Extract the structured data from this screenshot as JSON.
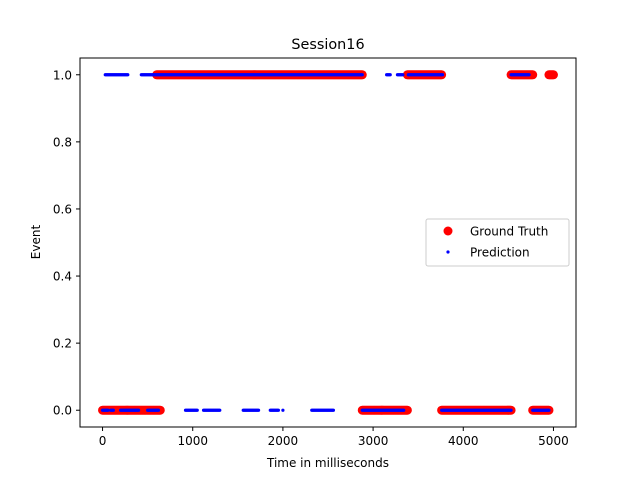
{
  "chart_data": {
    "type": "scatter",
    "title": "Session16",
    "xlabel": "Time in  milliseconds",
    "ylabel": "Event",
    "xlim": [
      -250,
      5250
    ],
    "ylim": [
      -0.05,
      1.05
    ],
    "xticks": [
      0,
      1000,
      2000,
      3000,
      4000,
      5000
    ],
    "yticks": [
      0.0,
      0.2,
      0.4,
      0.6,
      0.8,
      1.0
    ],
    "xtick_labels": [
      "0",
      "1000",
      "2000",
      "3000",
      "4000",
      "5000"
    ],
    "ytick_labels": [
      "0.0",
      "0.2",
      "0.4",
      "0.6",
      "0.8",
      "1.0"
    ],
    "grid": false,
    "legend_position": "center-right",
    "series": [
      {
        "name": "Ground Truth",
        "color": "#ff0000",
        "marker": "large-dot",
        "step_ms": 10,
        "segments": [
          {
            "y": 0,
            "from": 0,
            "to": 640
          },
          {
            "y": 1,
            "from": 600,
            "to": 2880
          },
          {
            "y": 0,
            "from": 2880,
            "to": 3380
          },
          {
            "y": 1,
            "from": 3380,
            "to": 3760
          },
          {
            "y": 0,
            "from": 3760,
            "to": 4530
          },
          {
            "y": 1,
            "from": 4530,
            "to": 4770
          },
          {
            "y": 0,
            "from": 4770,
            "to": 4950
          },
          {
            "y": 1,
            "from": 4950,
            "to": 5000
          }
        ]
      },
      {
        "name": "Prediction",
        "color": "#0000ff",
        "marker": "small-dot",
        "step_ms": 10,
        "segments": [
          {
            "y": 0,
            "from": 0,
            "to": 60
          },
          {
            "y": 1,
            "from": 30,
            "to": 280
          },
          {
            "y": 0,
            "from": 90,
            "to": 120
          },
          {
            "y": 0,
            "from": 200,
            "to": 400
          },
          {
            "y": 1,
            "from": 430,
            "to": 2880
          },
          {
            "y": 0,
            "from": 500,
            "to": 620
          },
          {
            "y": 0,
            "from": 920,
            "to": 1050
          },
          {
            "y": 0,
            "from": 1120,
            "to": 1300
          },
          {
            "y": 0,
            "from": 1560,
            "to": 1730
          },
          {
            "y": 0,
            "from": 1860,
            "to": 1950
          },
          {
            "y": 0,
            "from": 2000,
            "to": 2000
          },
          {
            "y": 0,
            "from": 2320,
            "to": 2560
          },
          {
            "y": 1,
            "from": 3150,
            "to": 3190
          },
          {
            "y": 0,
            "from": 2880,
            "to": 3340
          },
          {
            "y": 1,
            "from": 3270,
            "to": 3330
          },
          {
            "y": 1,
            "from": 3390,
            "to": 3770
          },
          {
            "y": 0,
            "from": 3760,
            "to": 4530
          },
          {
            "y": 1,
            "from": 4530,
            "to": 4730
          },
          {
            "y": 0,
            "from": 4770,
            "to": 4950
          }
        ]
      }
    ]
  }
}
